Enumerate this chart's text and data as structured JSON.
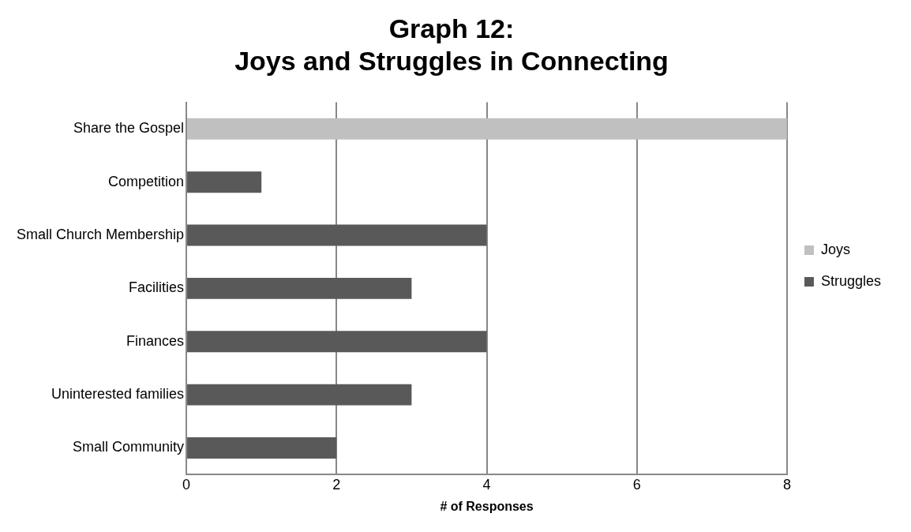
{
  "chart_data": {
    "type": "bar",
    "orientation": "horizontal",
    "stacked": true,
    "title": "Graph 12:\nJoys and Struggles in Connecting",
    "xlabel": "# of Responses",
    "categories": [
      "Share the Gospel",
      "Competition",
      "Small Church Membership",
      "Facilities",
      "Finances",
      "Uninterested families",
      "Small Community"
    ],
    "series": [
      {
        "name": "Joys",
        "color": "#c0c0c0",
        "values": [
          8,
          null,
          null,
          null,
          null,
          null,
          null
        ]
      },
      {
        "name": "Struggles",
        "color": "#595959",
        "values": [
          null,
          1,
          4,
          3,
          4,
          3,
          2
        ]
      }
    ],
    "xlim": [
      0,
      8
    ],
    "xticks": [
      0,
      2,
      4,
      6,
      8
    ],
    "grid": "x",
    "legend": "right"
  }
}
